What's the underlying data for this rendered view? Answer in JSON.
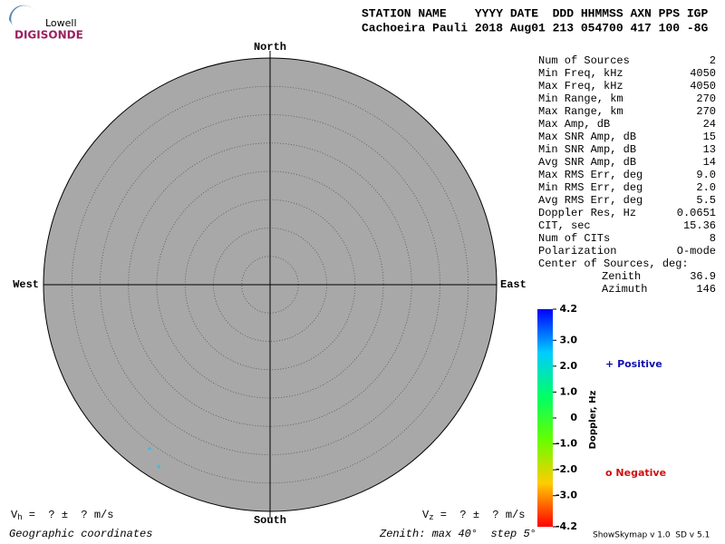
{
  "logo": {
    "top": "Lowell",
    "bottom": "DIGISONDE"
  },
  "header": {
    "columns": "STATION NAME    YYYY DATE  DDD HHMMSS AXN PPS IGP",
    "values": "Cachoeira Pauli 2018 Aug01 213 054700 417 100 -8G"
  },
  "skymap": {
    "north": "North",
    "south": "South",
    "west": "West",
    "east": "East",
    "zenith_max": 40,
    "ring_step": 5,
    "sources": [
      {
        "zenith": 36.0,
        "azimuth": 216.2,
        "doppler": 2.6
      },
      {
        "zenith": 37.8,
        "azimuth": 211.3,
        "doppler": 2.6
      }
    ],
    "coords": "Geographic coordinates",
    "zenith_label": "Zenith: max",
    "step_label": "step",
    "degree": "°",
    "vh": {
      "symbol": "V",
      "sub": "h",
      "text": " =  ? ±  ? m/s"
    },
    "vz": {
      "symbol": "V",
      "sub": "z",
      "text": " =  ? ±  ? m/s"
    }
  },
  "stats": {
    "rows": [
      [
        "Num of Sources",
        "2"
      ],
      [
        "Min Freq, kHz",
        "4050"
      ],
      [
        "Max Freq, kHz",
        "4050"
      ],
      [
        "Min Range, km",
        "270"
      ],
      [
        "Max Range, km",
        "270"
      ],
      [
        "Max Amp, dB",
        "24"
      ],
      [
        "Max SNR Amp, dB",
        "15"
      ],
      [
        "Min SNR Amp, dB",
        "13"
      ],
      [
        "Avg SNR Amp, dB",
        "14"
      ],
      [
        "Max RMS Err, deg",
        "9.0"
      ],
      [
        "Min RMS Err, deg",
        "2.0"
      ],
      [
        "Avg RMS Err, deg",
        "5.5"
      ],
      [
        "Doppler Res, Hz",
        "0.0651"
      ],
      [
        "CIT, sec",
        "15.36"
      ],
      [
        "Num of CITs",
        "8"
      ],
      [
        "Polarization",
        "O-mode"
      ]
    ],
    "center_title": "Center of Sources, deg:",
    "center_rows": [
      [
        "Zenith",
        "36.9"
      ],
      [
        "Azimuth",
        "146"
      ]
    ]
  },
  "colorbar": {
    "title": "Doppler, Hz",
    "lim": [
      -4.2,
      4.2
    ],
    "ticks": [
      4.2,
      {
        "value": 3,
        "label": "3.0"
      },
      {
        "value": 2,
        "label": "2.0"
      },
      {
        "value": 1,
        "label": "1.0"
      },
      0,
      {
        "value": -1,
        "label": "-1.0"
      },
      {
        "value": -2,
        "label": "-2.0"
      },
      {
        "value": -3,
        "label": "-3.0"
      },
      -4.2
    ]
  },
  "legend": {
    "positive_symbol": "+",
    "positive": "Positive",
    "negative_symbol": "o",
    "negative": "Negative"
  },
  "footer": {
    "version": "ShowSkymap v 1.0  SD v 5.1"
  }
}
